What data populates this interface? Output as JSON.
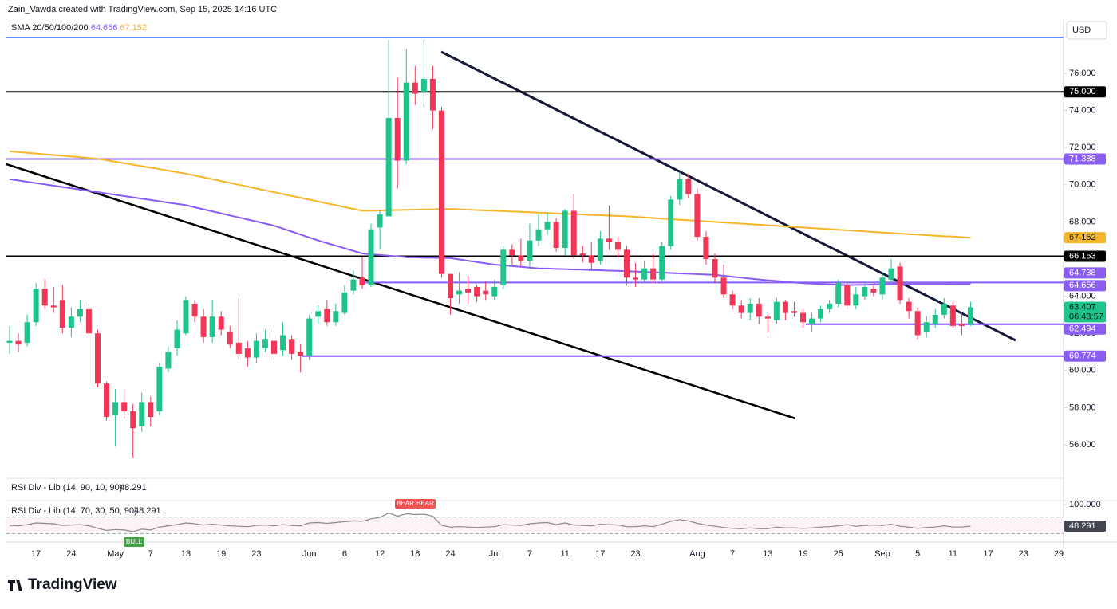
{
  "chart_data": {
    "type": "candlestick",
    "header": "Zain_Vawda created with TradingView.com, Sep 15, 2025 14:16 UTC",
    "indicator": "SMA 20/50/100/200",
    "currency": "USD",
    "brand": "TradingView",
    "countdown": "06:43:57",
    "up_color": "#1fc48a",
    "down_color": "#f23658",
    "categories": [
      null,
      null,
      null,
      "17",
      null,
      null,
      null,
      "24",
      null,
      null,
      null,
      null,
      "May",
      null,
      null,
      null,
      "7",
      null,
      null,
      null,
      "13",
      null,
      null,
      null,
      "19",
      null,
      null,
      null,
      "23",
      null,
      null,
      null,
      null,
      null,
      "Jun",
      null,
      null,
      null,
      "6",
      null,
      null,
      null,
      "12",
      null,
      null,
      null,
      "18",
      null,
      null,
      null,
      "24",
      null,
      null,
      null,
      null,
      "Jul",
      null,
      null,
      null,
      "7",
      null,
      null,
      null,
      "11",
      null,
      null,
      null,
      "17",
      null,
      null,
      null,
      "23",
      null,
      null,
      null,
      null,
      null,
      null,
      "Aug",
      null,
      null,
      null,
      "7",
      null,
      null,
      null,
      "13",
      null,
      null,
      null,
      "19",
      null,
      null,
      null,
      "25",
      null,
      null,
      null,
      null,
      "Sep",
      null,
      null,
      null,
      "5",
      null,
      null,
      null,
      "11",
      null,
      null,
      null,
      "17",
      null,
      null,
      null,
      "23",
      null,
      null,
      null,
      "29"
    ],
    "open": [
      61.5,
      61.6,
      61.5,
      62.6,
      64.4,
      63.5,
      63.8,
      62.3,
      62.9,
      63.3,
      62.0,
      59.3,
      57.6,
      58.3,
      57.8,
      57.0,
      58.3,
      57.8,
      60.1,
      61.2,
      62.0,
      63.6,
      62.9,
      61.8,
      62.9,
      62.1,
      61.5,
      61.2,
      60.7,
      61.2,
      61.6,
      61.1,
      61.7,
      61.0,
      60.8,
      62.9,
      63.3,
      62.6,
      63.1,
      64.3,
      65.0,
      64.6,
      67.7,
      68.3,
      73.6,
      71.3,
      75.5,
      75.0,
      75.7,
      74.0,
      65.2,
      64.1,
      64.4,
      64.5,
      64.3,
      64.0,
      64.6,
      66.5,
      66.2,
      65.9,
      67.0,
      67.6,
      68.0,
      66.6,
      68.6,
      66.3,
      66.2,
      65.9,
      67.1,
      66.9,
      66.5,
      65.0,
      64.9,
      65.5,
      64.9,
      66.7,
      69.2,
      70.3,
      69.5,
      67.2,
      66.0,
      65.0,
      64.1,
      63.5,
      63.1,
      63.6,
      62.9,
      62.7,
      63.7,
      63.2,
      63.1,
      62.5,
      62.8,
      63.3,
      63.6,
      64.6,
      63.5,
      64.0,
      64.4,
      64.1,
      64.9,
      65.6,
      63.7,
      63.2,
      62.1,
      62.5,
      63.0,
      63.5,
      62.5,
      62.5,
      null,
      null,
      null,
      null,
      null,
      null,
      null,
      null,
      null,
      null
    ],
    "high": [
      62.4,
      62.0,
      63.0,
      64.7,
      64.9,
      64.5,
      64.6,
      63.4,
      63.8,
      63.6,
      62.2,
      59.4,
      59.0,
      59.0,
      58.2,
      58.8,
      58.6,
      60.4,
      61.3,
      62.7,
      64.0,
      63.8,
      63.3,
      63.8,
      63.2,
      62.4,
      63.9,
      61.6,
      62.0,
      62.2,
      62.2,
      62.6,
      61.9,
      61.4,
      63.0,
      63.5,
      63.8,
      63.6,
      64.6,
      65.4,
      66.1,
      67.9,
      68.6,
      77.8,
      75.8,
      77.3,
      76.4,
      77.8,
      76.4,
      74.2,
      65.2,
      65.3,
      65.1,
      64.6,
      64.8,
      64.9,
      66.7,
      66.8,
      67.1,
      67.9,
      68.4,
      68.5,
      68.2,
      68.7,
      69.5,
      66.7,
      66.9,
      67.5,
      68.9,
      67.2,
      66.7,
      65.8,
      65.9,
      66.3,
      66.9,
      69.4,
      70.7,
      70.6,
      69.8,
      67.5,
      66.3,
      65.7,
      64.3,
      63.8,
      63.9,
      63.9,
      63.0,
      63.9,
      63.8,
      63.7,
      63.3,
      63.1,
      63.5,
      63.8,
      64.9,
      64.8,
      64.5,
      64.8,
      64.6,
      65.2,
      66.0,
      65.8,
      63.9,
      63.4,
      62.9,
      63.3,
      63.9,
      63.7,
      63.1,
      63.7,
      null,
      null,
      null,
      null,
      null,
      null,
      null,
      null,
      null,
      null
    ],
    "low": [
      60.9,
      61.0,
      61.3,
      62.4,
      63.3,
      63.1,
      62.0,
      61.8,
      62.6,
      61.8,
      59.1,
      57.3,
      55.9,
      57.4,
      55.3,
      56.7,
      57.0,
      57.6,
      59.9,
      60.8,
      61.9,
      62.6,
      61.5,
      61.5,
      61.9,
      61.2,
      60.6,
      60.2,
      60.4,
      61.0,
      60.6,
      60.8,
      60.6,
      59.9,
      60.6,
      62.5,
      62.4,
      62.4,
      63.0,
      64.1,
      64.4,
      64.5,
      66.5,
      68.3,
      69.8,
      71.1,
      74.3,
      74.2,
      73.0,
      65.0,
      63.0,
      63.6,
      63.6,
      63.7,
      63.8,
      63.8,
      64.4,
      65.7,
      65.6,
      65.6,
      66.7,
      67.3,
      66.4,
      66.2,
      66.0,
      65.8,
      65.4,
      65.7,
      66.5,
      66.1,
      64.6,
      64.5,
      64.7,
      64.7,
      64.8,
      66.5,
      68.9,
      69.3,
      67.0,
      65.7,
      64.7,
      63.9,
      63.3,
      62.8,
      62.7,
      62.5,
      62.0,
      62.5,
      62.7,
      62.9,
      62.3,
      62.1,
      62.6,
      63.1,
      63.4,
      63.3,
      63.3,
      63.8,
      64.0,
      63.8,
      64.7,
      63.6,
      62.8,
      61.7,
      61.8,
      62.3,
      62.8,
      62.3,
      61.9,
      62.4,
      null,
      null,
      null,
      null,
      null,
      null,
      null,
      null,
      null,
      null
    ],
    "close": [
      61.6,
      61.4,
      62.6,
      64.4,
      63.5,
      63.4,
      62.3,
      62.9,
      63.3,
      62.0,
      59.3,
      57.5,
      58.3,
      57.8,
      56.9,
      58.3,
      57.5,
      60.2,
      61.0,
      62.2,
      63.8,
      62.9,
      61.8,
      62.9,
      62.2,
      61.4,
      60.9,
      60.7,
      61.6,
      61.7,
      60.9,
      61.9,
      60.9,
      60.8,
      62.8,
      63.2,
      62.6,
      63.2,
      64.2,
      64.9,
      64.6,
      67.6,
      68.4,
      73.6,
      71.3,
      75.5,
      74.9,
      75.7,
      74.0,
      65.2,
      63.9,
      64.3,
      64.2,
      64.0,
      64.1,
      64.5,
      66.5,
      66.2,
      65.9,
      67.0,
      67.6,
      68.0,
      66.6,
      68.6,
      66.2,
      66.2,
      65.8,
      67.1,
      66.9,
      66.5,
      65.0,
      64.9,
      65.5,
      64.9,
      66.7,
      69.2,
      70.3,
      69.5,
      67.2,
      66.0,
      65.0,
      64.1,
      63.5,
      63.1,
      63.6,
      62.9,
      62.8,
      63.7,
      63.1,
      63.1,
      62.6,
      62.8,
      63.3,
      63.6,
      64.7,
      63.5,
      64.1,
      64.5,
      64.2,
      65.0,
      65.5,
      63.8,
      63.2,
      61.9,
      62.6,
      63.0,
      63.6,
      62.4,
      62.4,
      63.407,
      null,
      null,
      null,
      null,
      null,
      null,
      null,
      null,
      null,
      null
    ],
    "sma": [
      {
        "color": "#8a5cf6",
        "values": [
          70.3,
          70.23,
          70.16,
          70.09,
          70.02,
          69.95,
          69.88,
          69.81,
          69.74,
          69.67,
          69.6,
          69.53,
          69.46,
          69.39,
          69.32,
          69.25,
          69.18,
          69.11,
          69.04,
          68.97,
          68.9,
          68.79,
          68.68,
          68.57,
          68.46,
          68.35,
          68.24,
          68.13,
          68.02,
          67.91,
          67.8,
          67.64,
          67.48,
          67.32,
          67.16,
          67.0,
          66.86,
          66.72,
          66.58,
          66.44,
          66.3,
          66.26,
          66.22,
          66.18,
          66.14,
          66.1,
          66.09,
          66.08,
          66.07,
          66.06,
          66.05,
          65.98,
          65.91,
          65.84,
          65.77,
          65.7,
          65.66,
          65.62,
          65.58,
          65.54,
          65.5,
          65.49,
          65.47,
          65.46,
          65.44,
          65.43,
          65.41,
          65.4,
          65.38,
          65.37,
          65.35,
          65.33,
          65.31,
          65.29,
          65.27,
          65.25,
          65.23,
          65.21,
          65.19,
          65.17,
          65.15,
          65.1,
          65.05,
          65.0,
          64.95,
          64.9,
          64.86,
          64.82,
          64.78,
          64.74,
          64.7,
          64.68,
          64.66,
          64.64,
          64.62,
          64.6,
          64.61,
          64.62,
          64.63,
          64.64,
          64.65,
          64.65,
          64.65,
          64.65,
          64.65,
          64.65,
          64.65,
          64.66,
          64.66,
          64.656,
          null,
          null,
          null,
          null,
          null,
          null,
          null,
          null,
          null,
          null
        ]
      },
      {
        "color": "#f5b629",
        "values": [
          71.8,
          71.76,
          71.72,
          71.68,
          71.64,
          71.6,
          71.56,
          71.52,
          71.48,
          71.44,
          71.4,
          71.32,
          71.24,
          71.16,
          71.08,
          71.0,
          70.92,
          70.84,
          70.76,
          70.68,
          70.6,
          70.5,
          70.4,
          70.3,
          70.2,
          70.1,
          70.0,
          69.9,
          69.8,
          69.7,
          69.6,
          69.5,
          69.4,
          69.3,
          69.2,
          69.1,
          69.0,
          68.9,
          68.8,
          68.7,
          68.6,
          68.61,
          68.62,
          68.63,
          68.64,
          68.65,
          68.66,
          68.67,
          68.68,
          68.69,
          68.7,
          68.68,
          68.66,
          68.64,
          68.62,
          68.6,
          68.58,
          68.56,
          68.54,
          68.52,
          68.5,
          68.48,
          68.46,
          68.44,
          68.42,
          68.4,
          68.38,
          68.36,
          68.34,
          68.32,
          68.3,
          68.27,
          68.24,
          68.21,
          68.18,
          68.15,
          68.12,
          68.09,
          68.06,
          68.03,
          68.0,
          67.97,
          67.94,
          67.91,
          67.88,
          67.85,
          67.82,
          67.79,
          67.76,
          67.73,
          67.7,
          67.67,
          67.64,
          67.61,
          67.58,
          67.55,
          67.52,
          67.49,
          67.46,
          67.43,
          67.4,
          67.37,
          67.34,
          67.32,
          67.29,
          67.26,
          67.23,
          67.21,
          67.18,
          67.152,
          null,
          null,
          null,
          null,
          null,
          null,
          null,
          null,
          null,
          null
        ]
      }
    ],
    "levels": [
      {
        "value": 75,
        "label": "75.000",
        "color": "#000000"
      },
      {
        "value": 71.388,
        "label": "71.388",
        "color": "#8a5cf6"
      },
      {
        "value": 66.153,
        "label": "66.153",
        "color": "#000000"
      },
      {
        "value": 64.738,
        "label": "64.738",
        "color": "#8a5cf6"
      },
      {
        "value": 62.494,
        "label": "62.494",
        "color": "#8a5cf6"
      },
      {
        "value": 60.774,
        "label": "60.774",
        "color": "#8a5cf6"
      }
    ],
    "ylim": [
      54.2,
      77.93
    ],
    "yticks": [
      {
        "value": 56,
        "label": "56.000"
      },
      {
        "value": 58,
        "label": "58.000"
      },
      {
        "value": 60,
        "label": "60.000"
      },
      {
        "value": 62,
        "label": "62.000"
      },
      {
        "value": 64,
        "label": "64.000"
      },
      {
        "value": 66,
        "label": "66.000"
      },
      {
        "value": 68,
        "label": "68.000"
      },
      {
        "value": 70,
        "label": "70.000"
      },
      {
        "value": 72,
        "label": "72.000"
      },
      {
        "value": 74,
        "label": "74.000"
      },
      {
        "value": 76,
        "label": "76.000"
      }
    ],
    "rsi": {
      "title1": "RSI Div - Lib (14, 90, 10, 90)",
      "title2": "RSI Div - Lib (14, 70, 30, 50, 90)",
      "color": "#8a8a8a",
      "ylim": [
        10,
        109.6
      ],
      "yticks": [
        {
          "value": 100,
          "label": "100.000"
        }
      ],
      "bands": [
        70,
        30
      ],
      "signals": [
        {
          "text": "BULL",
          "color": "#43a047"
        },
        {
          "text": "BEAR",
          "color": "#ef5350"
        },
        {
          "text": "BEAR",
          "color": "#ef5350"
        }
      ],
      "values": [
        50,
        49,
        52,
        56,
        55,
        54,
        50,
        51,
        52,
        49,
        43,
        38,
        40,
        39,
        35,
        41,
        39,
        46,
        49,
        52,
        56,
        54,
        51,
        53,
        51,
        49,
        48,
        47,
        50,
        51,
        49,
        52,
        50,
        49,
        56,
        57,
        55,
        57,
        59,
        61,
        60,
        66,
        69,
        80,
        72,
        78,
        76,
        77,
        72,
        50,
        46,
        47,
        46,
        45,
        46,
        47,
        52,
        51,
        50,
        54,
        56,
        57,
        52,
        56,
        51,
        50,
        49,
        53,
        52,
        51,
        47,
        47,
        49,
        47,
        53,
        60,
        64,
        61,
        55,
        51,
        48,
        45,
        43,
        42,
        44,
        42,
        42,
        46,
        44,
        44,
        43,
        44,
        46,
        47,
        49,
        52,
        48,
        50,
        51,
        50,
        53,
        48,
        46,
        43,
        45,
        46,
        49,
        46,
        46,
        48.291,
        null,
        null,
        null,
        null,
        null,
        null,
        null,
        null,
        null,
        null
      ]
    }
  }
}
